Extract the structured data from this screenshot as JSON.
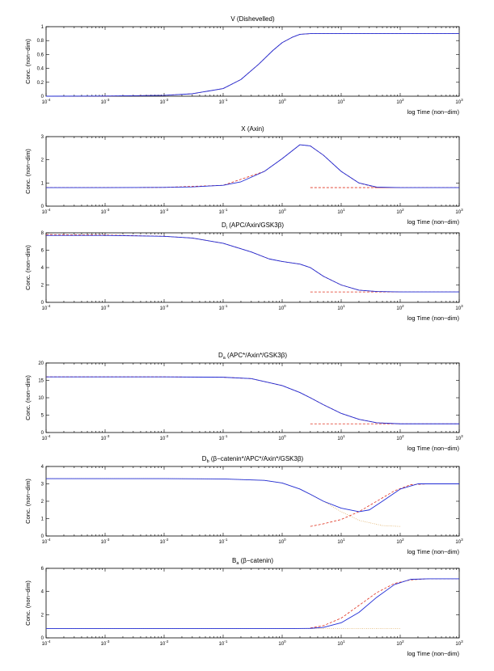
{
  "figure": {
    "title": "Simulated concentrations vs log time",
    "background": "#ffffff"
  },
  "colors": {
    "exact": "#1f2bd6",
    "outer": "#e0301e",
    "inner": "#d9a04a",
    "axis": "#000000"
  },
  "chart_data": [
    {
      "id": "V",
      "type": "line",
      "title": "V (Dishevelled)",
      "xlabel": "log Time (non−dim)",
      "ylabel": "Conc. (non−dim)",
      "xscale": "log",
      "xlim": [
        0.0001,
        1000
      ],
      "ylim": [
        0,
        1
      ],
      "x_ticks": [
        "10^-4",
        "10^-3",
        "10^-2",
        "10^-1",
        "10^0",
        "10^1",
        "10^2",
        "10^3"
      ],
      "y_ticks": [
        "0",
        "0.2",
        "0.4",
        "0.6",
        "0.8",
        "1"
      ],
      "y_tick_values": [
        0,
        0.2,
        0.4,
        0.6,
        0.8,
        1
      ],
      "series": [
        {
          "name": "full",
          "style": "solid",
          "color": "#1f2bd6",
          "x": [
            0.0001,
            0.001,
            0.01,
            0.03,
            0.1,
            0.2,
            0.4,
            0.7,
            1,
            1.5,
            2,
            3,
            10,
            100,
            1000
          ],
          "y": [
            0,
            0.002,
            0.012,
            0.035,
            0.11,
            0.24,
            0.46,
            0.66,
            0.77,
            0.85,
            0.89,
            0.9,
            0.9,
            0.9,
            0.9
          ]
        },
        {
          "name": "asymptotic",
          "style": "dashed",
          "color": "#e0301e",
          "x": [
            0.0001,
            0.001,
            0.01,
            0.03,
            0.1,
            0.2,
            0.4,
            0.7,
            1,
            1.5,
            2,
            3,
            10,
            100,
            1000
          ],
          "y": [
            0,
            0.002,
            0.012,
            0.035,
            0.11,
            0.24,
            0.46,
            0.66,
            0.77,
            0.85,
            0.89,
            0.9,
            0.9,
            0.9,
            0.9
          ]
        }
      ]
    },
    {
      "id": "X",
      "type": "line",
      "title": "X (Axin)",
      "xlabel": "log Time (non−dim)",
      "ylabel": "Conc. (non−dim)",
      "xscale": "log",
      "xlim": [
        0.0001,
        1000
      ],
      "ylim": [
        0,
        3
      ],
      "x_ticks": [
        "10^-4",
        "10^-3",
        "10^-2",
        "10^-1",
        "10^0",
        "10^1",
        "10^2",
        "10^3"
      ],
      "y_ticks": [
        "0",
        "1",
        "2",
        "3"
      ],
      "y_tick_values": [
        0,
        1,
        2,
        3
      ],
      "series": [
        {
          "name": "full",
          "style": "solid",
          "color": "#1f2bd6",
          "x": [
            0.0001,
            0.001,
            0.01,
            0.03,
            0.1,
            0.2,
            0.5,
            1,
            2,
            3,
            5,
            10,
            20,
            40,
            100,
            1000
          ],
          "y": [
            0.8,
            0.8,
            0.81,
            0.83,
            0.9,
            1.05,
            1.5,
            2.05,
            2.65,
            2.6,
            2.2,
            1.5,
            1.0,
            0.82,
            0.8,
            0.8
          ]
        },
        {
          "name": "outer",
          "style": "dashed",
          "color": "#e0301e",
          "x": [
            0.0001,
            0.01,
            0.1,
            0.5,
            1,
            2,
            3,
            5,
            10,
            20,
            40,
            100,
            1000
          ],
          "y": [
            0.8,
            0.81,
            0.9,
            1.5,
            2.05,
            2.65,
            2.6,
            2.2,
            1.5,
            1.0,
            0.8,
            0.8,
            0.8
          ]
        },
        {
          "name": "inner",
          "style": "dashed",
          "color": "#e0301e",
          "x": [
            3,
            5,
            10,
            40,
            100
          ],
          "y": [
            0.8,
            0.8,
            0.8,
            0.8,
            0.8
          ]
        }
      ]
    },
    {
      "id": "Di",
      "type": "line",
      "title": "D",
      "title_sub": "i",
      "title_rest": " (APC/Axin/GSK3β)",
      "xlabel": "log Time (non−dim)",
      "ylabel": "Conc. (non−dim)",
      "xscale": "log",
      "xlim": [
        0.0001,
        1000
      ],
      "ylim": [
        0,
        8
      ],
      "x_ticks": [
        "10^-4",
        "10^-3",
        "10^-2",
        "10^-1",
        "10^0",
        "10^1",
        "10^2",
        "10^3"
      ],
      "y_ticks": [
        "0",
        "2",
        "4",
        "6",
        "8"
      ],
      "y_tick_values": [
        0,
        2,
        4,
        6,
        8
      ],
      "series": [
        {
          "name": "full",
          "style": "solid",
          "color": "#1f2bd6",
          "x": [
            0.0001,
            0.001,
            0.01,
            0.03,
            0.1,
            0.3,
            0.6,
            1,
            2,
            3,
            5,
            10,
            20,
            40,
            100,
            1000
          ],
          "y": [
            7.7,
            7.7,
            7.6,
            7.4,
            6.8,
            5.8,
            5.0,
            4.7,
            4.4,
            4.0,
            3.0,
            2.0,
            1.4,
            1.25,
            1.2,
            1.2
          ]
        },
        {
          "name": "outer",
          "style": "dashed",
          "color": "#e0301e",
          "x": [
            0.0001,
            0.001,
            0.01,
            0.03,
            0.1,
            0.3,
            0.6,
            1,
            2,
            3,
            5,
            10,
            20,
            40,
            100,
            1000
          ],
          "y": [
            7.8,
            7.75,
            7.6,
            7.4,
            6.8,
            5.8,
            5.0,
            4.7,
            4.4,
            4.0,
            3.0,
            2.0,
            1.4,
            1.25,
            1.2,
            1.2
          ]
        },
        {
          "name": "inner",
          "style": "dashed",
          "color": "#e0301e",
          "x": [
            3,
            10,
            40,
            100
          ],
          "y": [
            1.2,
            1.2,
            1.2,
            1.2
          ]
        }
      ]
    },
    {
      "id": "Da",
      "type": "line",
      "title": "D",
      "title_sub": "a",
      "title_rest": " (APC*/Axin*/GSK3β)",
      "xlabel": "log Time (non−dim)",
      "ylabel": "Conc. (non−dim)",
      "xscale": "log",
      "xlim": [
        0.0001,
        1000
      ],
      "ylim": [
        0,
        20
      ],
      "x_ticks": [
        "10^-4",
        "10^-3",
        "10^-2",
        "10^-1",
        "10^0",
        "10^1",
        "10^2",
        "10^3"
      ],
      "y_ticks": [
        "0",
        "5",
        "10",
        "15",
        "20"
      ],
      "y_tick_values": [
        0,
        5,
        10,
        15,
        20
      ],
      "series": [
        {
          "name": "full",
          "style": "solid",
          "color": "#1f2bd6",
          "x": [
            0.0001,
            0.01,
            0.1,
            0.3,
            1,
            2,
            3,
            5,
            10,
            20,
            40,
            100,
            1000
          ],
          "y": [
            16,
            16,
            15.9,
            15.5,
            13.5,
            11.5,
            10,
            8,
            5.5,
            3.8,
            2.8,
            2.5,
            2.5
          ]
        },
        {
          "name": "outer",
          "style": "dashed",
          "color": "#e0301e",
          "x": [
            0.0001,
            0.01,
            0.1,
            0.3,
            1,
            2,
            3,
            5,
            10,
            20,
            40,
            100,
            1000
          ],
          "y": [
            16,
            16,
            15.9,
            15.5,
            13.5,
            11.5,
            10,
            8,
            5.5,
            3.8,
            2.8,
            2.5,
            2.5
          ]
        },
        {
          "name": "inner",
          "style": "dashed",
          "color": "#e0301e",
          "x": [
            3,
            10,
            40,
            100
          ],
          "y": [
            2.5,
            2.5,
            2.5,
            2.5
          ]
        }
      ]
    },
    {
      "id": "Db",
      "type": "line",
      "title": "D",
      "title_sub": "b",
      "title_rest": " (β−catenin*/APC*/Axin*/GSK3β)",
      "xlabel": "log Time (non−dim)",
      "ylabel": "Conc. (non−dim)",
      "xscale": "log",
      "xlim": [
        0.0001,
        1000
      ],
      "ylim": [
        0,
        4
      ],
      "x_ticks": [
        "10^-4",
        "10^-3",
        "10^-2",
        "10^-1",
        "10^0",
        "10^1",
        "10^2",
        "10^3"
      ],
      "y_ticks": [
        "0",
        "1",
        "2",
        "3",
        "4"
      ],
      "y_tick_values": [
        0,
        1,
        2,
        3,
        4
      ],
      "series": [
        {
          "name": "full",
          "style": "solid",
          "color": "#1f2bd6",
          "x": [
            0.0001,
            0.001,
            0.01,
            0.1,
            0.5,
            1,
            2,
            3,
            5,
            10,
            20,
            30,
            50,
            100,
            200,
            1000
          ],
          "y": [
            3.3,
            3.3,
            3.3,
            3.28,
            3.2,
            3.05,
            2.7,
            2.4,
            2.0,
            1.6,
            1.4,
            1.5,
            2.0,
            2.7,
            3.0,
            3.0
          ]
        },
        {
          "name": "outer",
          "style": "dotted",
          "color": "#d9a04a",
          "x": [
            0.0001,
            0.01,
            0.1,
            0.5,
            1,
            2,
            5,
            10,
            20,
            50,
            100
          ],
          "y": [
            3.3,
            3.3,
            3.28,
            3.2,
            3.05,
            2.7,
            2.0,
            1.4,
            0.9,
            0.6,
            0.55
          ]
        },
        {
          "name": "inner",
          "style": "dashed",
          "color": "#e0301e",
          "x": [
            3,
            5,
            10,
            20,
            40,
            80,
            150,
            300,
            1000
          ],
          "y": [
            0.55,
            0.7,
            0.95,
            1.4,
            2.0,
            2.6,
            2.95,
            3.0,
            3.0
          ]
        }
      ]
    },
    {
      "id": "Ba",
      "type": "line",
      "title": "B",
      "title_sub": "a",
      "title_rest": " (β−catenin)",
      "xlabel": "log Time (non−dim)",
      "ylabel": "Conc. (non−dim)",
      "xscale": "log",
      "xlim": [
        0.0001,
        1000
      ],
      "ylim": [
        0,
        6
      ],
      "x_ticks": [
        "10^-4",
        "10^-3",
        "10^-2",
        "10^-1",
        "10^0",
        "10^1",
        "10^2",
        "10^3"
      ],
      "y_ticks": [
        "0",
        "2",
        "4",
        "6"
      ],
      "y_tick_values": [
        0,
        2,
        4,
        6
      ],
      "series": [
        {
          "name": "full",
          "style": "solid",
          "color": "#1f2bd6",
          "x": [
            0.0001,
            0.01,
            1,
            3,
            5,
            10,
            20,
            40,
            80,
            150,
            300,
            1000
          ],
          "y": [
            0.8,
            0.8,
            0.8,
            0.82,
            0.9,
            1.3,
            2.2,
            3.5,
            4.6,
            5.05,
            5.1,
            5.1
          ]
        },
        {
          "name": "outer",
          "style": "dotted",
          "color": "#d9a04a",
          "x": [
            0.0001,
            1,
            10,
            100
          ],
          "y": [
            0.8,
            0.8,
            0.8,
            0.8
          ]
        },
        {
          "name": "inner",
          "style": "dashed",
          "color": "#e0301e",
          "x": [
            3,
            5,
            10,
            20,
            40,
            80,
            150,
            300,
            1000
          ],
          "y": [
            0.85,
            1.05,
            1.7,
            2.8,
            3.9,
            4.7,
            5.0,
            5.1,
            5.1
          ]
        }
      ]
    }
  ]
}
